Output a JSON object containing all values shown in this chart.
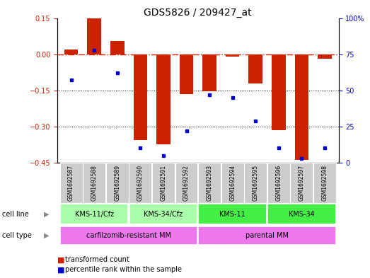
{
  "title": "GDS5826 / 209427_at",
  "samples": [
    "GSM1692587",
    "GSM1692588",
    "GSM1692589",
    "GSM1692590",
    "GSM1692591",
    "GSM1692592",
    "GSM1692593",
    "GSM1692594",
    "GSM1692595",
    "GSM1692596",
    "GSM1692597",
    "GSM1692598"
  ],
  "transformed_count": [
    0.02,
    0.148,
    0.055,
    -0.355,
    -0.375,
    -0.165,
    -0.155,
    -0.01,
    -0.12,
    -0.315,
    -0.44,
    -0.02
  ],
  "percentile_rank": [
    57,
    78,
    62,
    10,
    5,
    22,
    47,
    45,
    29,
    10,
    3,
    10
  ],
  "cell_line_groups": [
    {
      "label": "KMS-11/Cfz",
      "start": 0,
      "end": 3,
      "color": "#aaffaa"
    },
    {
      "label": "KMS-34/Cfz",
      "start": 3,
      "end": 6,
      "color": "#aaffaa"
    },
    {
      "label": "KMS-11",
      "start": 6,
      "end": 9,
      "color": "#44ee44"
    },
    {
      "label": "KMS-34",
      "start": 9,
      "end": 12,
      "color": "#44ee44"
    }
  ],
  "cell_type_groups": [
    {
      "label": "carfilzomib-resistant MM",
      "start": 0,
      "end": 6,
      "color": "#ee77ee"
    },
    {
      "label": "parental MM",
      "start": 6,
      "end": 12,
      "color": "#ee77ee"
    }
  ],
  "bar_color": "#cc2200",
  "dot_color": "#0000cc",
  "hline_color": "#cc2200",
  "hline_value": 0.0,
  "left_ylim": [
    -0.45,
    0.15
  ],
  "right_ylim": [
    0,
    100
  ],
  "left_yticks": [
    -0.45,
    -0.3,
    -0.15,
    0.0,
    0.15
  ],
  "right_yticks": [
    0,
    25,
    50,
    75,
    100
  ],
  "right_yticklabels": [
    "0",
    "25",
    "50",
    "75",
    "100%"
  ],
  "sample_row_color": "#cccccc",
  "title_fontsize": 10,
  "tick_fontsize": 7,
  "bar_width": 0.6,
  "figsize": [
    5.23,
    3.93
  ],
  "dpi": 100
}
